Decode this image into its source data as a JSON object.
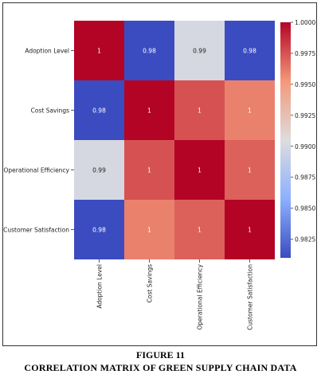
{
  "figure": {
    "number": "FIGURE 11",
    "title": "CORRELATION MATRIX OF GREEN SUPPLY CHAIN DATA"
  },
  "chart_data": {
    "type": "heatmap",
    "row_labels": [
      "Adoption Level",
      "Cost Savings",
      "Operational Efficiency",
      "Customer Satisfaction"
    ],
    "col_labels": [
      "Adoption Level",
      "Cost Savings",
      "Operational Efficiency",
      "Customer Satisfaction"
    ],
    "values": [
      [
        1.0,
        0.98,
        0.99,
        0.98
      ],
      [
        0.98,
        1.0,
        0.9975,
        0.996
      ],
      [
        0.99,
        0.9975,
        1.0,
        0.997
      ],
      [
        0.98,
        0.996,
        0.997,
        1.0
      ]
    ],
    "annotations": [
      [
        "1",
        "0.98",
        "0.99",
        "0.98"
      ],
      [
        "0.98",
        "1",
        "1",
        "1"
      ],
      [
        "0.99",
        "1",
        "1",
        "1"
      ],
      [
        "0.98",
        "1",
        "1",
        "1"
      ]
    ],
    "colormap": "coolwarm",
    "colorbar": {
      "vmin": 0.981,
      "vmax": 1.0,
      "ticks": [
        "1.0000",
        "0.9975",
        "0.9950",
        "0.9925",
        "0.9900",
        "0.9875",
        "0.9850",
        "0.9825"
      ]
    }
  }
}
